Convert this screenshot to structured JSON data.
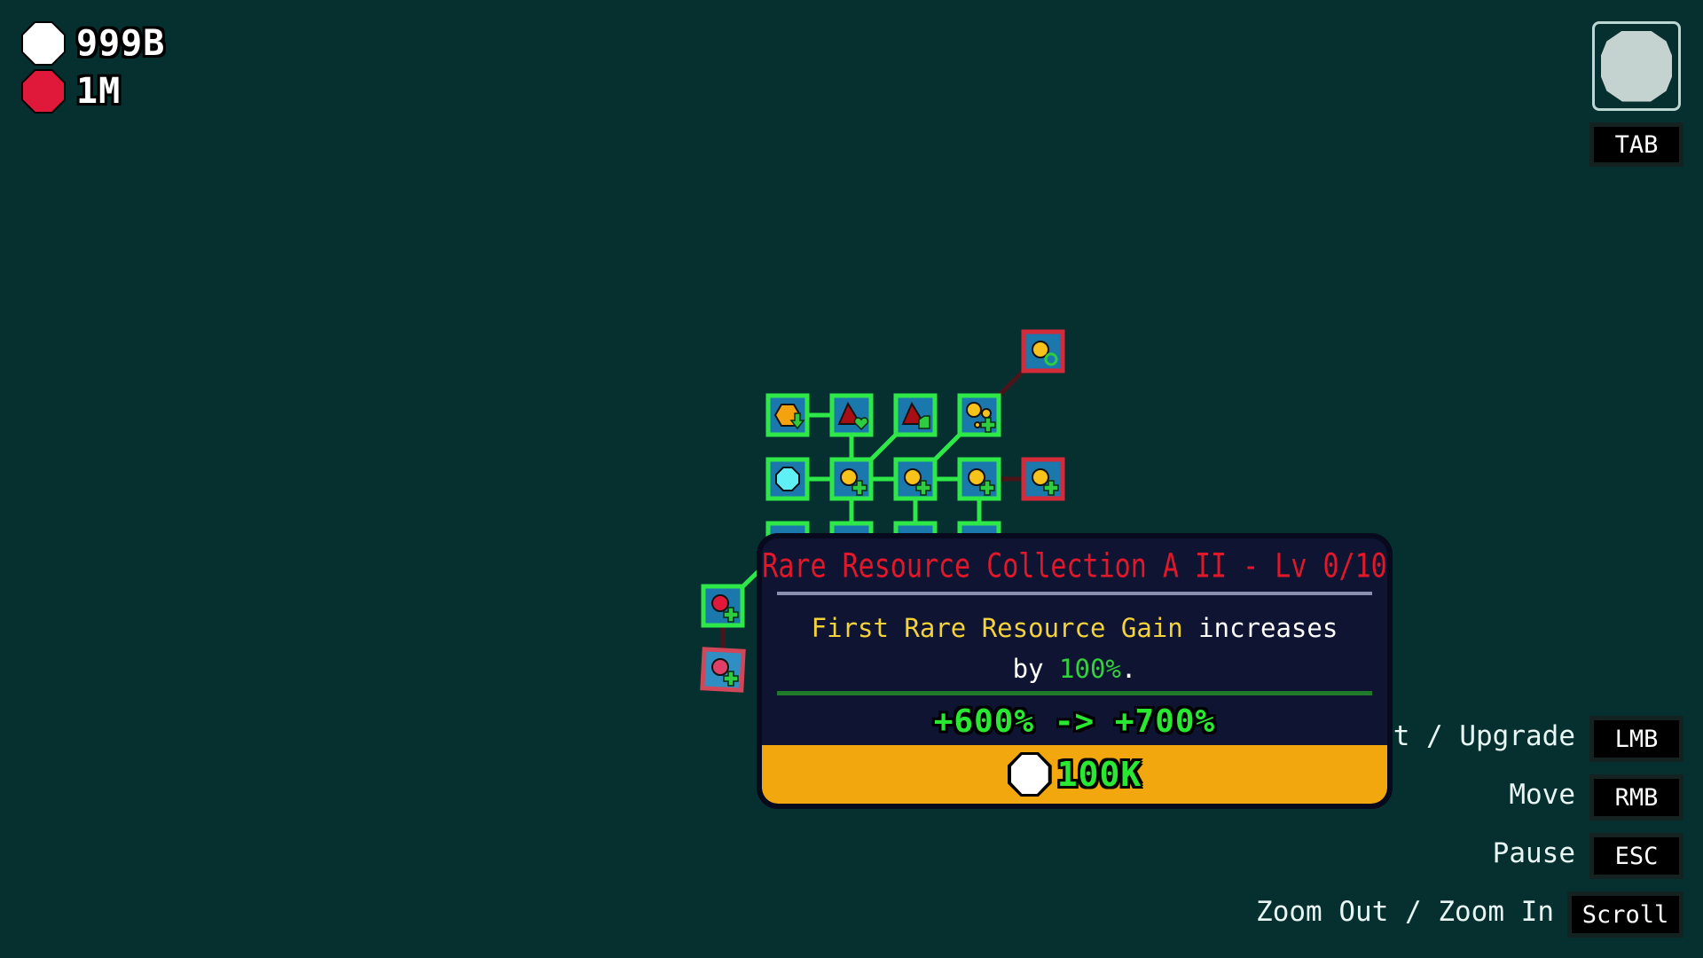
{
  "resources": [
    {
      "name": "common",
      "icon": "white-octagon-icon",
      "color": "#ffffff",
      "amount": "999B"
    },
    {
      "name": "rare",
      "icon": "red-octagon-icon",
      "color": "#e0183a",
      "amount": "1M"
    }
  ],
  "map_toggle": {
    "icon": "gray-circle-icon",
    "key": "TAB"
  },
  "colors": {
    "background": "#06302f",
    "node_fill": "#1a78ad",
    "purchased_border": "#2ee84a",
    "locked_border": "#d42a3a",
    "tooltip_bg": "#0e1431",
    "cost_bar": "#f3a70f"
  },
  "tree": {
    "nodes": [
      {
        "id": "n-top-red",
        "col": 4,
        "row": -1,
        "status": "locked",
        "icon": "coin-refresh"
      },
      {
        "id": "n11",
        "col": 0,
        "row": 0,
        "status": "purchased",
        "icon": "hexagon-down"
      },
      {
        "id": "n12",
        "col": 1,
        "row": 0,
        "status": "purchased",
        "icon": "triangle-heart"
      },
      {
        "id": "n13",
        "col": 2,
        "row": 0,
        "status": "purchased",
        "icon": "triangle-square"
      },
      {
        "id": "n14",
        "col": 3,
        "row": 0,
        "status": "purchased",
        "icon": "coins-plus"
      },
      {
        "id": "n21",
        "col": 0,
        "row": 1,
        "status": "purchased",
        "icon": "cyan-octagon"
      },
      {
        "id": "n22",
        "col": 1,
        "row": 1,
        "status": "purchased",
        "icon": "coin-plus"
      },
      {
        "id": "n23",
        "col": 2,
        "row": 1,
        "status": "purchased",
        "icon": "coin-plus"
      },
      {
        "id": "n24",
        "col": 3,
        "row": 1,
        "status": "purchased",
        "icon": "coin-plus"
      },
      {
        "id": "n25",
        "col": 4,
        "row": 1,
        "status": "locked",
        "icon": "coin-plus"
      },
      {
        "id": "n31",
        "col": 0,
        "row": 2,
        "status": "purchased",
        "icon": "none"
      },
      {
        "id": "n32",
        "col": 1,
        "row": 2,
        "status": "purchased",
        "icon": "none"
      },
      {
        "id": "n33",
        "col": 2,
        "row": 2,
        "status": "purchased",
        "icon": "none"
      },
      {
        "id": "n34",
        "col": 3,
        "row": 2,
        "status": "purchased",
        "icon": "none"
      },
      {
        "id": "n-left-green",
        "col": -1,
        "row": 3,
        "status": "purchased",
        "icon": "red-plus"
      },
      {
        "id": "n-left-red",
        "col": -1,
        "row": 4,
        "status": "locked",
        "selected": true,
        "icon": "red-plus"
      }
    ],
    "links": [
      [
        "n11",
        "n12"
      ],
      [
        "n12",
        "n22"
      ],
      [
        "n22",
        "n13"
      ],
      [
        "n23",
        "n14"
      ],
      [
        "n14",
        "n-top-red"
      ],
      [
        "n21",
        "n22"
      ],
      [
        "n22",
        "n23"
      ],
      [
        "n23",
        "n24"
      ],
      [
        "n24",
        "n25"
      ],
      [
        "n22",
        "n32"
      ],
      [
        "n23",
        "n33"
      ],
      [
        "n24",
        "n34"
      ],
      [
        "n31",
        "n-left-green"
      ],
      [
        "n-left-green",
        "n-left-red"
      ]
    ]
  },
  "tooltip": {
    "title": "Rare Resource Collection A II - Lv 0/10",
    "desc_highlight": "First Rare Resource Gain",
    "desc_mid": " increases",
    "desc_by": "by ",
    "desc_value": "100%",
    "desc_end": ".",
    "stat_from": "+600%",
    "stat_arrow": "->",
    "stat_to": "+700%",
    "cost_icon": "white-octagon-icon",
    "cost": "100K"
  },
  "controls": [
    {
      "action": "Select / Upgrade",
      "key": "LMB"
    },
    {
      "action": "Move",
      "key": "RMB"
    },
    {
      "action": "Pause",
      "key": "ESC"
    },
    {
      "action": "Zoom Out / Zoom In",
      "key": "Scroll"
    }
  ]
}
